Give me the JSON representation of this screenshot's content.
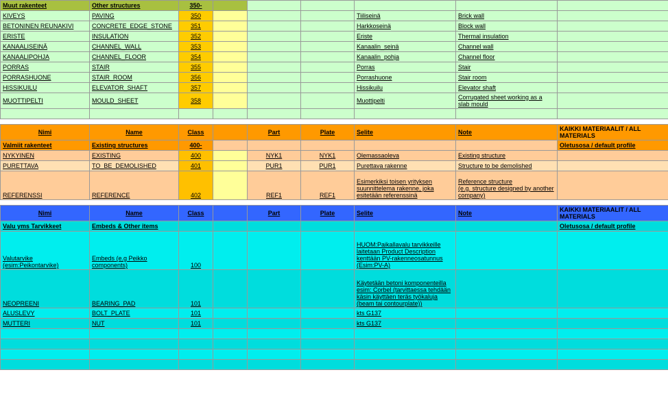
{
  "palette": {
    "olive": "#a8c040",
    "paleGreen": "#ccffcc",
    "limeYellow": "#ffff99",
    "amber": "#ffcc00",
    "gold": "#ffc000",
    "orangeHdr": "#ff9900",
    "peach": "#ffcc99",
    "peachAlt": "#ffe0b3",
    "blueHdr": "#3366ff",
    "cyan": "#00dddd",
    "cyanAlt": "#00eeee"
  },
  "colWidths": [
    "130px",
    "130px",
    "50px",
    "50px",
    "78px",
    "78px",
    "148px",
    "148px",
    "162px"
  ],
  "sec1": {
    "catFi": "Muut rakenteet",
    "catEn": "Other structures",
    "catCode": "350-",
    "rows": [
      {
        "fi": "KIVEYS",
        "en": "PAVING",
        "cls": "350",
        "selite": "Tiiliseinä",
        "note": "Brick wall"
      },
      {
        "fi": "BETONINEN REUNAKIVI",
        "en": "CONCRETE_EDGE_STONE",
        "cls": "351",
        "selite": "Harkkoseinä",
        "note": "Block wall"
      },
      {
        "fi": "ERISTE",
        "en": "INSULATION",
        "cls": "352",
        "selite": "Eriste",
        "note": "Thermal insulation"
      },
      {
        "fi": "KANAALISEINÄ",
        "en": "CHANNEL_WALL",
        "cls": "353",
        "selite": "Kanaalin_seinä",
        "note": "Channel wall"
      },
      {
        "fi": "KANAALIPOHJA",
        "en": "CHANNEL_FLOOR",
        "cls": "354",
        "selite": "Kanaalin_pohja",
        "note": "Channel floor"
      },
      {
        "fi": "PORRAS",
        "en": "STAIR",
        "cls": "355",
        "selite": "Porras",
        "note": "Stair"
      },
      {
        "fi": "PORRASHUONE",
        "en": "STAIR_ROOM",
        "cls": "356",
        "selite": "Porrashuone",
        "note": "Stair room"
      },
      {
        "fi": "HISSIKUILU",
        "en": "ELEVATOR_SHAFT",
        "cls": "357",
        "selite": "Hissikuilu",
        "note": "Elevator shaft"
      },
      {
        "fi": "MUOTTIPELTI",
        "en": "MOULD_SHEET",
        "cls": "358",
        "selite": "Muottipelti",
        "note": "Corrugated sheet working as a slab mould"
      }
    ]
  },
  "hdr": {
    "nimi": "Nimi",
    "name": "Name",
    "class": "Class",
    "part": "Part",
    "plate": "Plate",
    "selite": "Selite",
    "note": "Note",
    "mat": "KAIKKI MATERIAALIT / ALL MATERIALS",
    "def": "Oletusosa / default profile"
  },
  "sec2": {
    "catFi": "Valmiit rakenteet",
    "catEn": "Existing structures",
    "catCode": "400-",
    "rows": [
      {
        "fi": "NYKYINEN",
        "en": "EXISTING",
        "cls": "400",
        "part": "NYK1",
        "plate": "NYK1",
        "selite": "Olemassaoleva",
        "note": "Existing structure"
      },
      {
        "fi": "PURETTAVA",
        "en": "TO_BE_DEMOLISHED",
        "cls": "401",
        "part": "PUR1",
        "plate": "PUR1",
        "selite": "Purettava rakenne",
        "note": "Structure to be demolished"
      },
      {
        "fi": "REFERENSSI",
        "en": "REFERENCE",
        "cls": "402",
        "part": "REF1",
        "plate": "REF1",
        "selite": "Esimerkiksi toisen yrityksen suunnittelema rakenne, joka esitetään referenssinä",
        "note": "Reference structure\n(e.g. structure designed by another company)"
      }
    ]
  },
  "sec3": {
    "catFi": "Valu yms Tarvikkeet",
    "catEn": "Embeds & Other items",
    "rows": [
      {
        "fi": "Valutarvike (esim:Peikontarvike)",
        "en": "Embeds (e.g Peikko components)",
        "cls": "100",
        "selite": "HUOM:Paikallavalu tarvikkeille laitetaan Product Description kenttään PV-rakenneosatunnus (Esim:PV-A)"
      },
      {
        "fi": "NEOPREENI",
        "en": "BEARING_PAD",
        "cls": "101",
        "selite": "Käytetään betoni komponenteilla esim: Corbel (tarvittaessa tehdään käsin käyttäen teräs työkaluja (beam tai contourplate))"
      },
      {
        "fi": "ALUSLEVY",
        "en": "BOLT_PLATE",
        "cls": "101",
        "selite": "kts G137"
      },
      {
        "fi": "MUTTERI",
        "en": "NUT",
        "cls": "101",
        "selite": "kts G137"
      }
    ],
    "emptyRows": 4
  }
}
